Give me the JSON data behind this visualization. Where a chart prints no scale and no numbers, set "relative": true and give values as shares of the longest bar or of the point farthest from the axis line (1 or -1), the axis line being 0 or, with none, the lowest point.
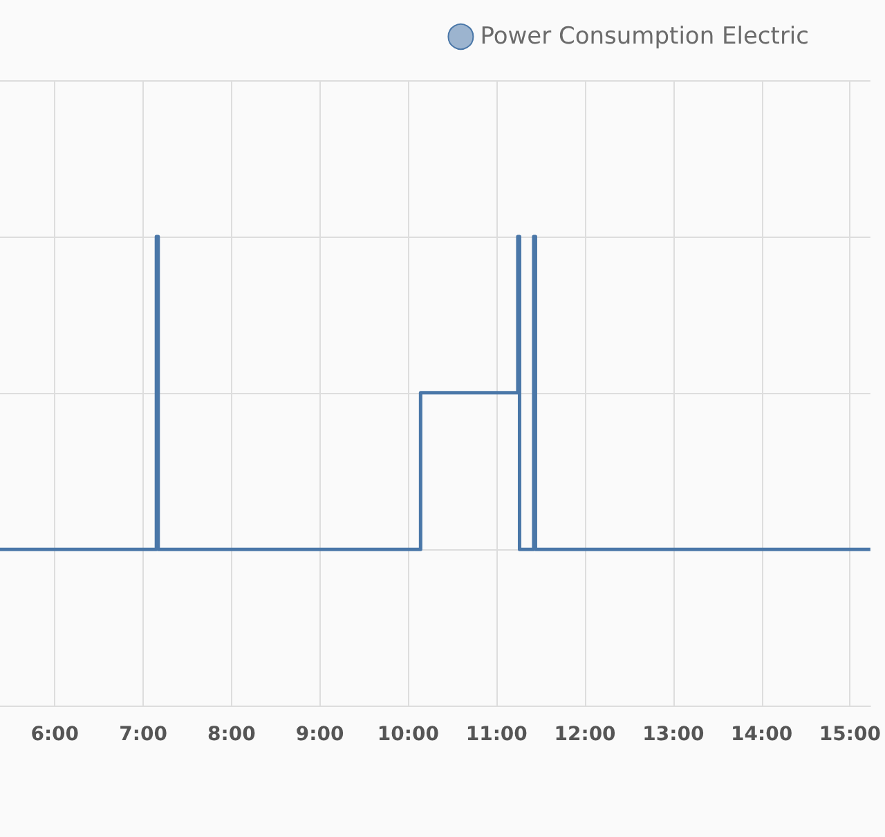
{
  "chart_data": {
    "type": "step",
    "relative": true,
    "x": [
      5.38,
      7.15,
      7.17,
      10.14,
      11.24,
      11.26,
      11.42,
      11.44,
      15.23
    ],
    "series": [
      {
        "name": "Power Consumption Electric",
        "color": "#4a77a8",
        "values": [
          0.333,
          1,
          0.333,
          0.667,
          1,
          0.333,
          1,
          0.333,
          0.333
        ]
      }
    ],
    "xlim": [
      5.38,
      15.23
    ],
    "xticks": [
      {
        "value": 6,
        "label": "6:00"
      },
      {
        "value": 7,
        "label": "7:00"
      },
      {
        "value": 8,
        "label": "8:00"
      },
      {
        "value": 9,
        "label": "9:00"
      },
      {
        "value": 10,
        "label": "10:00"
      },
      {
        "value": 11,
        "label": "11:00"
      },
      {
        "value": 12,
        "label": "12:00"
      },
      {
        "value": 13,
        "label": "13:00"
      },
      {
        "value": 14,
        "label": "14:00"
      },
      {
        "value": 15,
        "label": "15:00"
      }
    ],
    "grid": true,
    "legend": "top right",
    "marker": "none"
  }
}
